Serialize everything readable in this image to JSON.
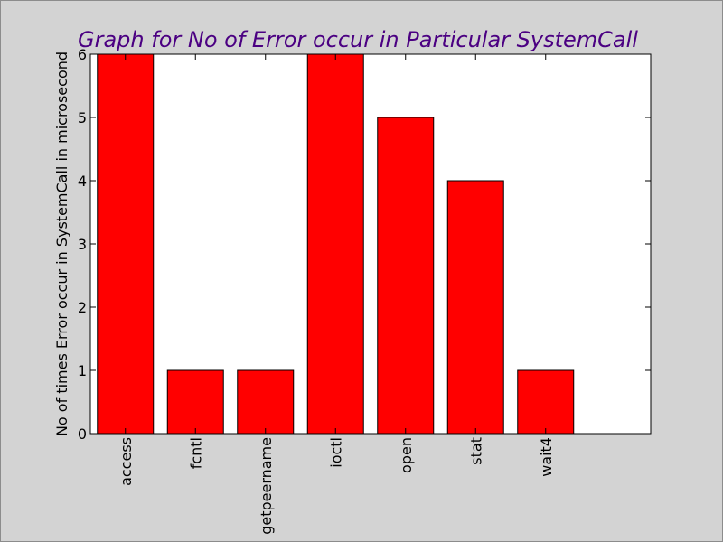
{
  "colors": {
    "figure_background": "#d3d3d3",
    "figure_border": "#8c8c8c",
    "plot_background": "#ffffff",
    "bar_fill": "#ff0000",
    "bar_edge": "#000000",
    "title": "#4b0082"
  },
  "chart_data": {
    "type": "bar",
    "title": "Graph for No of Error occur in Particular SystemCall",
    "xlabel": "",
    "ylabel": "No of times Error occur in SystemCall in microsecond",
    "categories": [
      "access",
      "fcntl",
      "getpeername",
      "ioctl",
      "open",
      "stat",
      "wait4"
    ],
    "values": [
      6,
      1,
      1,
      6,
      5,
      4,
      1
    ],
    "ylim": [
      0,
      6
    ],
    "yticks": [
      "0",
      "1",
      "2",
      "3",
      "4",
      "5",
      "6"
    ],
    "grid": false,
    "legend": "none",
    "x_tick_rotation": "vertical"
  }
}
